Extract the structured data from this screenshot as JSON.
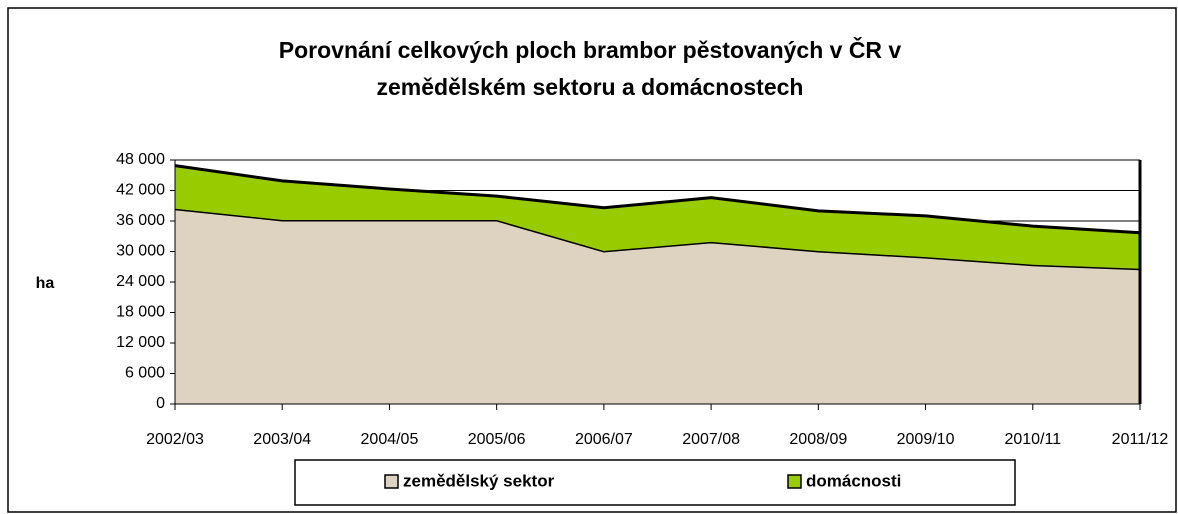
{
  "chart_data": {
    "type": "stacked_area",
    "title": "Porovnání celkových ploch brambor pěstovaných v ČR  v",
    "subtitle": "zemědělském sektoru a domácnostech",
    "y_label": "ha",
    "categories": [
      "2002/03",
      "2003/04",
      "2004/05",
      "2005/06",
      "2006/07",
      "2007/08",
      "2008/09",
      "2009/10",
      "2010/11",
      "2011/12"
    ],
    "series": [
      {
        "name": "zemědělský sektor",
        "color": "#ddd3c0",
        "values": [
          38400,
          36200,
          36200,
          36200,
          30100,
          31900,
          30100,
          28900,
          27400,
          26600
        ]
      },
      {
        "name": "domácnosti",
        "color": "#99cc00",
        "values": [
          8500,
          7700,
          6100,
          4700,
          8500,
          8700,
          7900,
          8100,
          7600,
          7100
        ]
      }
    ],
    "ylim": [
      0,
      48000
    ],
    "yticks": [
      0,
      {
        "value": 6000,
        "label": "6 000"
      },
      {
        "value": 12000,
        "label": "12 000"
      },
      {
        "value": 18000,
        "label": "18 000"
      },
      {
        "value": 24000,
        "label": "24 000"
      },
      {
        "value": 30000,
        "label": "30 000"
      },
      {
        "value": 36000,
        "label": "36 000"
      },
      {
        "value": 42000,
        "label": "42 000"
      },
      {
        "value": 48000,
        "label": "48 000"
      }
    ],
    "grid": true,
    "legend": "bottom"
  }
}
